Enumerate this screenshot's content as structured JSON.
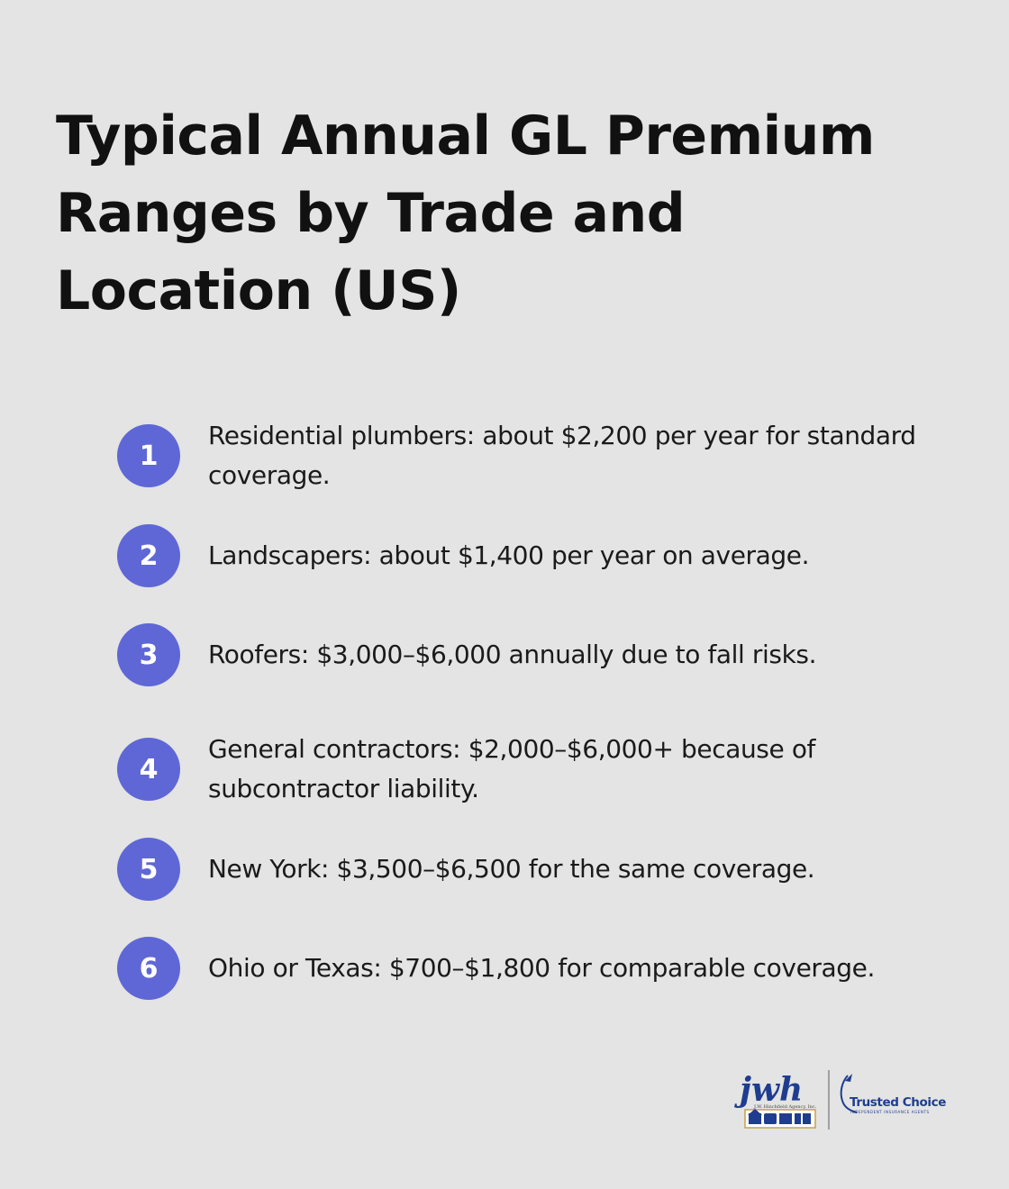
{
  "title": "Typical Annual GL Premium Ranges by Trade and Location (US)",
  "items": [
    {
      "number": "1",
      "text": "Residential plumbers: about $2,200 per year for standard coverage."
    },
    {
      "number": "2",
      "text": "Landscapers: about $1,400 per year on average."
    },
    {
      "number": "3",
      "text": "Roofers: $3,000–$6,000 annually due to fall risks."
    },
    {
      "number": "4",
      "text": "General contractors: $2,000–$6,000+ because of subcontractor liability."
    },
    {
      "number": "5",
      "text": "New York: $3,500–$6,500 for the same coverage."
    },
    {
      "number": "6",
      "text": "Ohio or Texas: $700–$1,800 for comparable coverage."
    }
  ],
  "colors": {
    "background": "#e3e4e3",
    "badge": "#5f67d6",
    "text": "#111111"
  },
  "logos": {
    "jwh": {
      "mark": "jwh",
      "tagline": "J.W. Hinchfield Agency, Inc."
    },
    "trusted_choice": {
      "name": "Trusted Choice",
      "tagline": "INDEPENDENT INSURANCE AGENTS"
    }
  }
}
